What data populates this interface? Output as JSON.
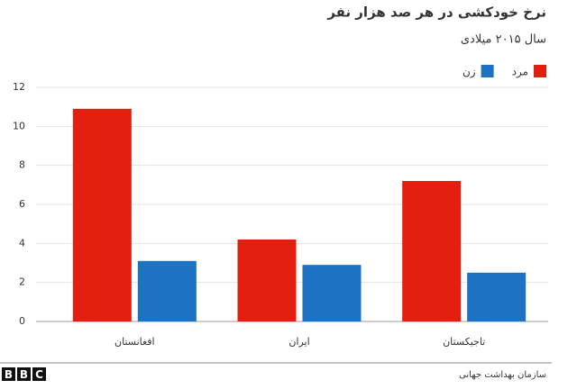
{
  "chart_data": {
    "type": "bar",
    "title": "نرخ خودکشی در هر صد هزار نفر",
    "subtitle": "سال ۲۰۱۵ میلادی",
    "categories": [
      "افغانستان",
      "ایران",
      "تاجیکستان"
    ],
    "series": [
      {
        "name": "مرد",
        "color": "#e32010",
        "values": [
          10.9,
          4.2,
          7.2
        ]
      },
      {
        "name": "زن",
        "color": "#1d72c4",
        "values": [
          3.1,
          2.9,
          2.5
        ]
      }
    ],
    "ylim": [
      0,
      12
    ],
    "yticks": [
      0,
      2,
      4,
      6,
      8,
      10,
      12
    ],
    "grid": true,
    "legend": "top-right",
    "source": "سازمان بهداشت جهانی",
    "logo": [
      "B",
      "B",
      "C"
    ]
  }
}
